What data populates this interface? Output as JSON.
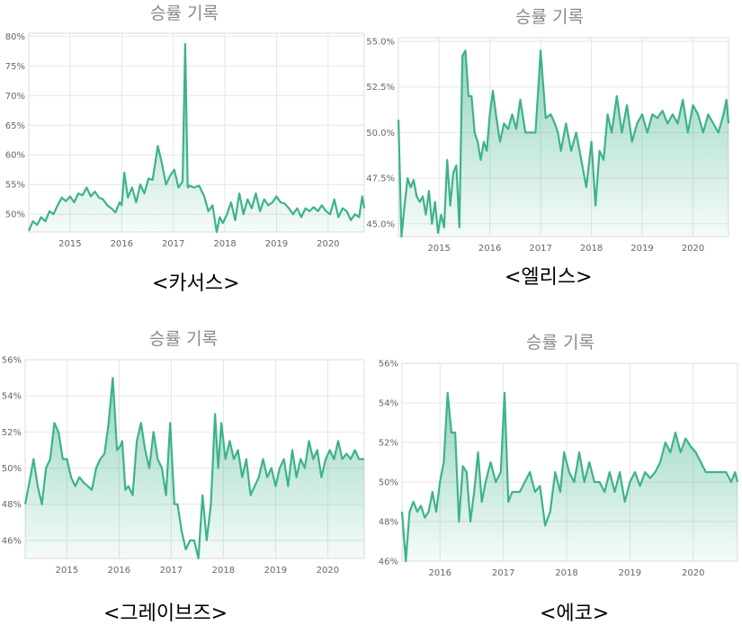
{
  "accent_color": "#3db389",
  "chart_data": [
    {
      "type": "area",
      "title": "승률 기록",
      "caption": "<카서스>",
      "y_ticks": [
        50,
        55,
        60,
        65,
        70,
        75,
        80
      ],
      "y_tick_labels": [
        "50%",
        "55%",
        "60%",
        "65%",
        "70%",
        "75%",
        "80%"
      ],
      "ylim": [
        47,
        80.5
      ],
      "xlim": [
        2014.2,
        2020.7
      ],
      "x_ticks": [
        2015,
        2016,
        2017,
        2018,
        2019,
        2020
      ],
      "x_tick_labels": [
        "2015",
        "2016",
        "2017",
        "2018",
        "2019",
        "2020"
      ],
      "x": [
        2014.2,
        2014.28,
        2014.36,
        2014.44,
        2014.52,
        2014.6,
        2014.68,
        2014.76,
        2014.84,
        2014.92,
        2015.0,
        2015.08,
        2015.16,
        2015.24,
        2015.32,
        2015.4,
        2015.48,
        2015.56,
        2015.64,
        2015.72,
        2015.8,
        2015.88,
        2015.96,
        2016.0,
        2016.05,
        2016.12,
        2016.2,
        2016.28,
        2016.36,
        2016.44,
        2016.52,
        2016.6,
        2016.7,
        2016.78,
        2016.86,
        2016.94,
        2017.02,
        2017.1,
        2017.18,
        2017.23,
        2017.28,
        2017.32,
        2017.4,
        2017.5,
        2017.6,
        2017.68,
        2017.76,
        2017.84,
        2017.9,
        2017.96,
        2018.04,
        2018.12,
        2018.2,
        2018.28,
        2018.36,
        2018.44,
        2018.52,
        2018.6,
        2018.68,
        2018.76,
        2018.84,
        2018.92,
        2019.0,
        2019.08,
        2019.16,
        2019.24,
        2019.32,
        2019.4,
        2019.48,
        2019.56,
        2019.64,
        2019.72,
        2019.8,
        2019.88,
        2019.96,
        2020.04,
        2020.12,
        2020.2,
        2020.28,
        2020.36,
        2020.44,
        2020.52,
        2020.6,
        2020.66,
        2020.7
      ],
      "series": [
        {
          "values": [
            47.2,
            48.8,
            48.2,
            49.5,
            48.8,
            50.5,
            50.0,
            51.5,
            52.8,
            52.2,
            53.0,
            52.0,
            53.5,
            53.2,
            54.5,
            53.0,
            53.8,
            52.8,
            52.5,
            51.5,
            51.0,
            50.3,
            52.0,
            51.5,
            57.0,
            52.8,
            54.5,
            52.0,
            55.0,
            53.5,
            56.0,
            55.8,
            61.5,
            58.5,
            55.0,
            56.5,
            57.5,
            54.5,
            55.5,
            78.7,
            54.5,
            54.8,
            54.5,
            54.8,
            53.0,
            50.5,
            51.5,
            47.0,
            49.5,
            48.5,
            50.0,
            52.0,
            49.0,
            53.5,
            50.0,
            52.5,
            51.0,
            53.5,
            50.5,
            52.5,
            51.5,
            52.0,
            53.0,
            52.0,
            51.8,
            51.0,
            50.0,
            51.0,
            49.5,
            51.0,
            50.5,
            51.2,
            50.5,
            51.5,
            50.5,
            50.0,
            52.5,
            49.5,
            51.0,
            50.5,
            49.0,
            50.0,
            49.5,
            53.0,
            51.0
          ]
        }
      ]
    },
    {
      "type": "area",
      "title": "승률 기록",
      "caption": "<엘리스>",
      "y_ticks": [
        45,
        47.5,
        50,
        52.5,
        55
      ],
      "y_tick_labels": [
        "45.0%",
        "47.5%",
        "50.0%",
        "52.5%",
        "55.0%"
      ],
      "ylim": [
        44.3,
        55.2
      ],
      "xlim": [
        2014.2,
        2020.7
      ],
      "x_ticks": [
        2015,
        2016,
        2017,
        2018,
        2019,
        2020
      ],
      "x_tick_labels": [
        "2015",
        "2016",
        "2017",
        "2018",
        "2019",
        "2020"
      ],
      "x": [
        2014.2,
        2014.26,
        2014.32,
        2014.38,
        2014.44,
        2014.5,
        2014.56,
        2014.62,
        2014.68,
        2014.74,
        2014.8,
        2014.86,
        2014.92,
        2014.98,
        2015.04,
        2015.1,
        2015.16,
        2015.22,
        2015.28,
        2015.34,
        2015.4,
        2015.46,
        2015.52,
        2015.58,
        2015.64,
        2015.7,
        2015.76,
        2015.82,
        2015.88,
        2015.94,
        2016.0,
        2016.06,
        2016.12,
        2016.2,
        2016.28,
        2016.36,
        2016.44,
        2016.52,
        2016.6,
        2016.7,
        2016.8,
        2016.9,
        2017.0,
        2017.1,
        2017.2,
        2017.28,
        2017.34,
        2017.4,
        2017.5,
        2017.6,
        2017.7,
        2017.8,
        2017.9,
        2018.0,
        2018.08,
        2018.16,
        2018.24,
        2018.32,
        2018.4,
        2018.5,
        2018.6,
        2018.7,
        2018.8,
        2018.9,
        2019.0,
        2019.1,
        2019.2,
        2019.3,
        2019.4,
        2019.5,
        2019.6,
        2019.7,
        2019.8,
        2019.9,
        2020.0,
        2020.1,
        2020.2,
        2020.3,
        2020.4,
        2020.5,
        2020.6,
        2020.66,
        2020.7
      ],
      "series": [
        {
          "values": [
            50.7,
            44.3,
            46.0,
            47.5,
            47.0,
            47.4,
            46.5,
            46.2,
            46.5,
            45.5,
            46.8,
            45.0,
            46.2,
            44.5,
            45.5,
            44.8,
            48.5,
            46.0,
            47.8,
            48.2,
            44.8,
            54.2,
            54.5,
            52.0,
            52.0,
            50.0,
            49.5,
            48.5,
            49.5,
            49.0,
            51.0,
            52.3,
            51.0,
            49.5,
            50.5,
            50.2,
            51.0,
            50.2,
            51.8,
            50.0,
            50.0,
            50.0,
            54.5,
            50.8,
            51.0,
            50.5,
            50.0,
            49.0,
            50.5,
            49.0,
            50.0,
            48.5,
            47.0,
            49.5,
            46.0,
            49.0,
            48.5,
            51.0,
            50.0,
            52.0,
            50.0,
            51.5,
            49.5,
            50.5,
            51.0,
            50.0,
            51.0,
            50.8,
            51.2,
            50.5,
            51.0,
            50.5,
            51.8,
            50.0,
            51.5,
            51.0,
            50.0,
            51.0,
            50.5,
            50.0,
            51.0,
            51.8,
            50.5
          ]
        }
      ]
    },
    {
      "type": "area",
      "title": "승률 기록",
      "caption": "<그레이브즈>",
      "y_ticks": [
        46,
        48,
        50,
        52,
        54,
        56
      ],
      "y_tick_labels": [
        "46%",
        "48%",
        "50%",
        "52%",
        "54%",
        "56%"
      ],
      "ylim": [
        45.0,
        56.0
      ],
      "xlim": [
        2014.2,
        2020.7
      ],
      "x_ticks": [
        2015,
        2016,
        2017,
        2018,
        2019,
        2020
      ],
      "x_tick_labels": [
        "2015",
        "2016",
        "2017",
        "2018",
        "2019",
        "2020"
      ],
      "x": [
        2014.2,
        2014.28,
        2014.36,
        2014.44,
        2014.52,
        2014.6,
        2014.68,
        2014.76,
        2014.84,
        2014.92,
        2015.0,
        2015.08,
        2015.16,
        2015.24,
        2015.32,
        2015.4,
        2015.48,
        2015.56,
        2015.64,
        2015.72,
        2015.8,
        2015.88,
        2015.96,
        2016.02,
        2016.06,
        2016.12,
        2016.18,
        2016.26,
        2016.34,
        2016.42,
        2016.5,
        2016.58,
        2016.66,
        2016.74,
        2016.82,
        2016.9,
        2016.98,
        2017.06,
        2017.12,
        2017.2,
        2017.28,
        2017.36,
        2017.44,
        2017.52,
        2017.6,
        2017.68,
        2017.76,
        2017.84,
        2017.9,
        2017.96,
        2018.04,
        2018.12,
        2018.2,
        2018.28,
        2018.36,
        2018.44,
        2018.52,
        2018.6,
        2018.68,
        2018.76,
        2018.84,
        2018.92,
        2019.0,
        2019.08,
        2019.16,
        2019.24,
        2019.32,
        2019.4,
        2019.48,
        2019.56,
        2019.64,
        2019.72,
        2019.8,
        2019.88,
        2019.96,
        2020.04,
        2020.12,
        2020.2,
        2020.28,
        2020.36,
        2020.44,
        2020.52,
        2020.6,
        2020.66,
        2020.7
      ],
      "series": [
        {
          "values": [
            48.0,
            49.2,
            50.5,
            49.0,
            48.0,
            50.0,
            50.5,
            52.5,
            52.0,
            50.5,
            50.5,
            49.5,
            49.0,
            49.5,
            49.2,
            49.0,
            48.8,
            50.0,
            50.5,
            50.8,
            52.5,
            55.0,
            51.0,
            51.2,
            51.5,
            48.8,
            49.0,
            48.5,
            51.5,
            52.5,
            51.0,
            50.0,
            52.0,
            50.5,
            50.0,
            48.5,
            52.5,
            48.0,
            48.0,
            46.5,
            45.5,
            46.0,
            46.0,
            45.0,
            48.5,
            46.0,
            48.0,
            53.0,
            50.0,
            52.5,
            50.5,
            51.5,
            50.5,
            51.0,
            49.5,
            50.5,
            48.5,
            49.0,
            49.5,
            50.5,
            49.5,
            50.0,
            49.0,
            50.0,
            50.5,
            49.0,
            51.0,
            49.5,
            50.5,
            50.0,
            51.5,
            50.5,
            51.0,
            49.5,
            50.5,
            51.0,
            50.5,
            51.5,
            50.5,
            50.8,
            50.5,
            51.0,
            50.5,
            50.5,
            50.5
          ]
        }
      ]
    },
    {
      "type": "area",
      "title": "승률 기록",
      "caption": "<에코>",
      "y_ticks": [
        46,
        48,
        50,
        52,
        54,
        56
      ],
      "y_tick_labels": [
        "46%",
        "48%",
        "50%",
        "52%",
        "54%",
        "56%"
      ],
      "ylim": [
        46.0,
        56.0
      ],
      "xlim": [
        2015.4,
        2020.7
      ],
      "x_ticks": [
        2016,
        2017,
        2018,
        2019,
        2020
      ],
      "x_tick_labels": [
        "2016",
        "2017",
        "2018",
        "2019",
        "2020"
      ],
      "x": [
        2015.4,
        2015.46,
        2015.52,
        2015.58,
        2015.64,
        2015.7,
        2015.76,
        2015.82,
        2015.88,
        2015.94,
        2016.0,
        2016.06,
        2016.12,
        2016.18,
        2016.24,
        2016.3,
        2016.36,
        2016.42,
        2016.48,
        2016.54,
        2016.6,
        2016.66,
        2016.72,
        2016.8,
        2016.88,
        2016.96,
        2017.02,
        2017.08,
        2017.14,
        2017.2,
        2017.26,
        2017.34,
        2017.42,
        2017.5,
        2017.58,
        2017.66,
        2017.74,
        2017.82,
        2017.9,
        2017.96,
        2018.04,
        2018.12,
        2018.2,
        2018.28,
        2018.36,
        2018.44,
        2018.52,
        2018.6,
        2018.68,
        2018.76,
        2018.84,
        2018.92,
        2019.0,
        2019.08,
        2019.16,
        2019.24,
        2019.32,
        2019.4,
        2019.48,
        2019.56,
        2019.64,
        2019.72,
        2019.8,
        2019.88,
        2019.96,
        2020.04,
        2020.12,
        2020.2,
        2020.28,
        2020.36,
        2020.44,
        2020.52,
        2020.6,
        2020.66,
        2020.7
      ],
      "series": [
        {
          "values": [
            48.5,
            46.0,
            48.5,
            49.0,
            48.5,
            48.8,
            48.2,
            48.5,
            49.5,
            48.5,
            50.0,
            51.0,
            54.5,
            52.5,
            52.5,
            48.0,
            50.8,
            50.5,
            48.0,
            49.5,
            51.5,
            49.0,
            50.0,
            51.0,
            50.0,
            50.5,
            54.5,
            49.0,
            49.5,
            49.5,
            49.5,
            50.0,
            50.5,
            49.5,
            49.8,
            47.8,
            48.5,
            50.5,
            49.5,
            51.5,
            50.5,
            50.0,
            51.5,
            50.0,
            51.0,
            50.0,
            50.0,
            49.5,
            50.5,
            49.5,
            50.5,
            49.0,
            50.0,
            50.5,
            49.8,
            50.5,
            50.2,
            50.5,
            51.0,
            52.0,
            51.5,
            52.5,
            51.5,
            52.2,
            51.8,
            51.5,
            51.0,
            50.5,
            50.5,
            50.5,
            50.5,
            50.5,
            50.0,
            50.5,
            50.0
          ]
        }
      ]
    }
  ]
}
